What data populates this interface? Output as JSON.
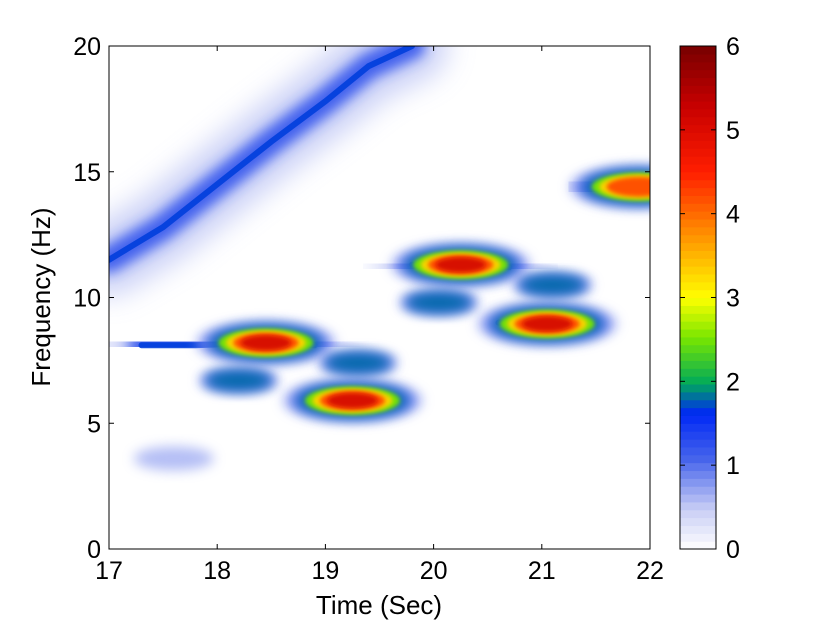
{
  "chart_data": {
    "type": "heatmap",
    "xlabel": "Time (Sec)",
    "ylabel": "Frequency (Hz)",
    "xlim": [
      17,
      22
    ],
    "ylim": [
      0,
      20
    ],
    "xticks": [
      "17",
      "18",
      "19",
      "20",
      "21",
      "22"
    ],
    "yticks": [
      "0",
      "5",
      "10",
      "15",
      "20"
    ],
    "colorbar": {
      "colormap": "jet-like (white at low end)",
      "range": [
        0,
        6
      ],
      "ticks": [
        "0",
        "1",
        "2",
        "3",
        "4",
        "5",
        "6"
      ]
    },
    "ridges": [
      {
        "name": "",
        "points": [
          [
            17.0,
            11.5
          ],
          [
            17.5,
            12.8
          ],
          [
            18.0,
            14.5
          ],
          [
            18.5,
            16.2
          ],
          [
            19.0,
            17.8
          ],
          [
            19.4,
            19.2
          ],
          [
            19.8,
            20.0
          ]
        ]
      },
      {
        "name": "",
        "points": [
          [
            17.3,
            8.1
          ],
          [
            17.8,
            8.1
          ],
          [
            18.4,
            8.2
          ],
          [
            18.9,
            8.1
          ]
        ]
      },
      {
        "name": "",
        "points": [
          [
            18.9,
            5.9
          ],
          [
            19.2,
            5.9
          ],
          [
            19.6,
            5.9
          ]
        ]
      },
      {
        "name": "",
        "points": [
          [
            19.8,
            11.3
          ],
          [
            20.3,
            11.3
          ],
          [
            20.7,
            11.2
          ]
        ]
      },
      {
        "name": "",
        "points": [
          [
            20.6,
            9.0
          ],
          [
            21.0,
            9.0
          ],
          [
            21.4,
            9.0
          ]
        ]
      },
      {
        "name": "",
        "points": [
          [
            21.5,
            14.3
          ],
          [
            21.8,
            14.4
          ],
          [
            22.0,
            14.5
          ]
        ]
      }
    ],
    "hotspots": [
      {
        "x": 18.45,
        "y": 8.2,
        "value": 5.8
      },
      {
        "x": 19.25,
        "y": 5.9,
        "value": 5.7
      },
      {
        "x": 20.25,
        "y": 11.3,
        "value": 5.8
      },
      {
        "x": 21.05,
        "y": 8.95,
        "value": 5.5
      },
      {
        "x": 21.9,
        "y": 14.4,
        "value": 5.0
      },
      {
        "x": 19.3,
        "y": 7.4,
        "value": 2.5
      },
      {
        "x": 20.05,
        "y": 9.8,
        "value": 2.5
      },
      {
        "x": 21.1,
        "y": 10.5,
        "value": 2.0
      },
      {
        "x": 18.2,
        "y": 6.7,
        "value": 2.0
      },
      {
        "x": 17.6,
        "y": 3.6,
        "value": 0.8
      }
    ]
  }
}
